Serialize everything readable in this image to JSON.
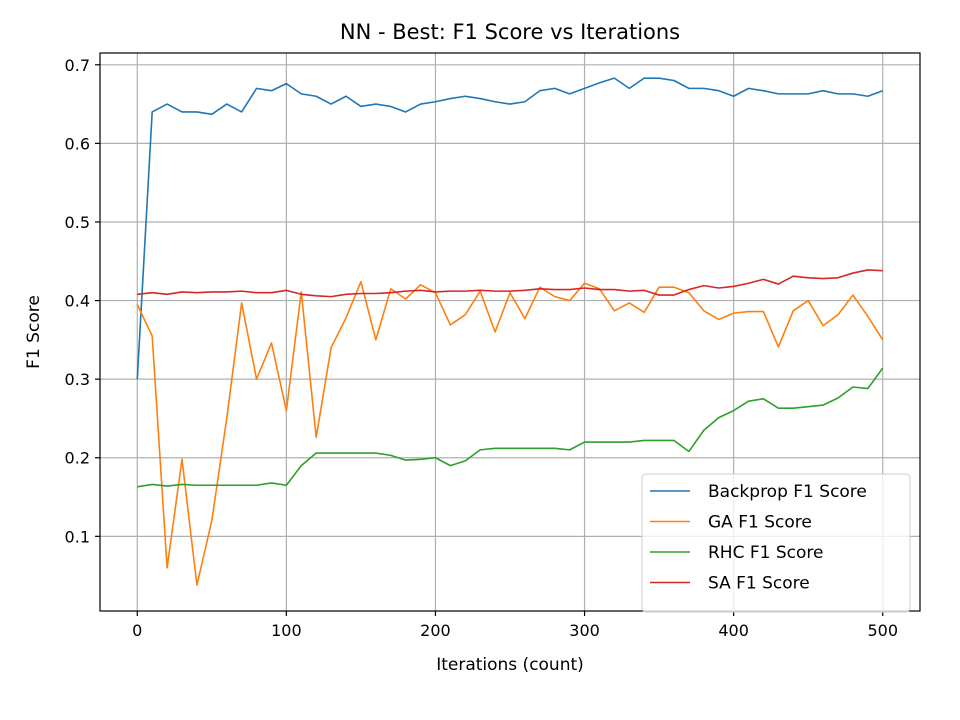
{
  "chart_data": {
    "type": "line",
    "title": "NN - Best: F1 Score vs Iterations",
    "xlabel": "Iterations (count)",
    "ylabel": "F1 Score",
    "xlim": [
      -25,
      525
    ],
    "ylim": [
      0.005,
      0.715
    ],
    "xticks": [
      0,
      100,
      200,
      300,
      400,
      500
    ],
    "yticks": [
      0.1,
      0.2,
      0.3,
      0.4,
      0.5,
      0.6,
      0.7
    ],
    "grid": true,
    "legend_position": "lower-right",
    "x": [
      0,
      10,
      20,
      30,
      40,
      50,
      60,
      70,
      80,
      90,
      100,
      110,
      120,
      130,
      140,
      150,
      160,
      170,
      180,
      190,
      200,
      210,
      220,
      230,
      240,
      250,
      260,
      270,
      280,
      290,
      300,
      310,
      320,
      330,
      340,
      350,
      360,
      370,
      380,
      390,
      400,
      410,
      420,
      430,
      440,
      450,
      460,
      470,
      480,
      490,
      500
    ],
    "series": [
      {
        "name": "Backprop F1 Score",
        "color": "#1f77b4",
        "values": [
          0.3,
          0.64,
          0.65,
          0.64,
          0.64,
          0.637,
          0.65,
          0.64,
          0.67,
          0.667,
          0.676,
          0.663,
          0.66,
          0.65,
          0.66,
          0.647,
          0.65,
          0.647,
          0.64,
          0.65,
          0.653,
          0.657,
          0.66,
          0.657,
          0.653,
          0.65,
          0.653,
          0.667,
          0.67,
          0.663,
          0.67,
          0.677,
          0.683,
          0.67,
          0.683,
          0.683,
          0.68,
          0.67,
          0.67,
          0.667,
          0.66,
          0.67,
          0.667,
          0.663,
          0.663,
          0.663,
          0.667,
          0.663,
          0.663,
          0.66,
          0.667
        ]
      },
      {
        "name": "GA F1 Score",
        "color": "#ff7f0e",
        "values": [
          0.395,
          0.355,
          0.06,
          0.198,
          0.038,
          0.12,
          0.25,
          0.397,
          0.3,
          0.346,
          0.26,
          0.411,
          0.226,
          0.34,
          0.378,
          0.424,
          0.35,
          0.415,
          0.402,
          0.42,
          0.41,
          0.369,
          0.382,
          0.412,
          0.36,
          0.41,
          0.377,
          0.417,
          0.405,
          0.4,
          0.422,
          0.415,
          0.387,
          0.397,
          0.385,
          0.417,
          0.417,
          0.41,
          0.387,
          0.376,
          0.384,
          0.386,
          0.386,
          0.341,
          0.387,
          0.4,
          0.368,
          0.382,
          0.407,
          0.38,
          0.35
        ]
      },
      {
        "name": "RHC F1 Score",
        "color": "#2ca02c",
        "values": [
          0.163,
          0.166,
          0.164,
          0.166,
          0.165,
          0.165,
          0.165,
          0.165,
          0.165,
          0.168,
          0.165,
          0.19,
          0.206,
          0.206,
          0.206,
          0.206,
          0.206,
          0.203,
          0.197,
          0.198,
          0.2,
          0.19,
          0.196,
          0.21,
          0.212,
          0.212,
          0.212,
          0.212,
          0.212,
          0.21,
          0.22,
          0.22,
          0.22,
          0.22,
          0.222,
          0.222,
          0.222,
          0.208,
          0.235,
          0.251,
          0.26,
          0.272,
          0.275,
          0.263,
          0.263,
          0.265,
          0.267,
          0.276,
          0.29,
          0.288,
          0.314
        ]
      },
      {
        "name": "SA F1 Score",
        "color": "#d62728",
        "values": [
          0.408,
          0.41,
          0.408,
          0.411,
          0.41,
          0.411,
          0.411,
          0.412,
          0.41,
          0.41,
          0.413,
          0.408,
          0.406,
          0.405,
          0.408,
          0.409,
          0.409,
          0.41,
          0.412,
          0.413,
          0.411,
          0.412,
          0.412,
          0.413,
          0.412,
          0.412,
          0.413,
          0.415,
          0.414,
          0.414,
          0.416,
          0.414,
          0.414,
          0.412,
          0.413,
          0.407,
          0.407,
          0.414,
          0.419,
          0.416,
          0.418,
          0.422,
          0.427,
          0.421,
          0.431,
          0.429,
          0.428,
          0.429,
          0.435,
          0.439,
          0.438
        ]
      }
    ]
  }
}
